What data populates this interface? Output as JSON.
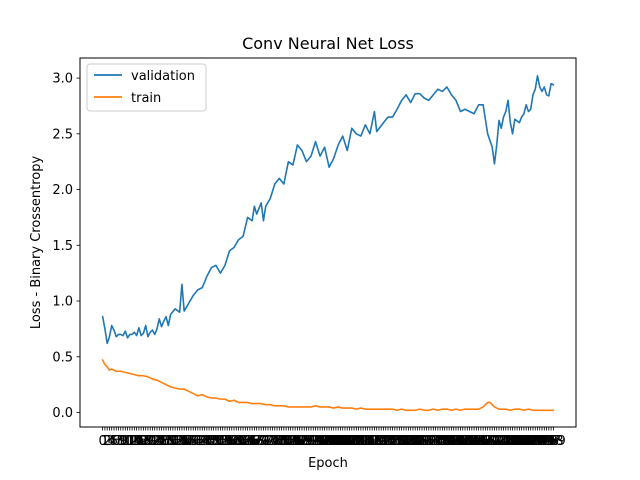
{
  "chart_data": {
    "type": "line",
    "title": "Conv Neural Net Loss",
    "xlabel": "Epoch",
    "ylabel": "Loss - Binary Crossentropy",
    "xlim": [
      -10,
      209
    ],
    "ylim": [
      -0.13,
      3.18
    ],
    "yticks": [
      0.0,
      0.5,
      1.0,
      1.5,
      2.0,
      2.5,
      3.0
    ],
    "ytick_labels": [
      "0.0",
      "0.5",
      "1.0",
      "1.5",
      "2.0",
      "2.5",
      "3.0"
    ],
    "grid": false,
    "legend_position": "upper left",
    "colors": {
      "validation": "#1f77b4",
      "train": "#ff7f0e"
    },
    "series": [
      {
        "name": "validation",
        "points": [
          [
            0,
            0.86
          ],
          [
            1,
            0.75
          ],
          [
            2,
            0.62
          ],
          [
            3,
            0.68
          ],
          [
            4,
            0.78
          ],
          [
            5,
            0.74
          ],
          [
            6,
            0.68
          ],
          [
            7,
            0.7
          ],
          [
            8,
            0.7
          ],
          [
            9,
            0.69
          ],
          [
            10,
            0.73
          ],
          [
            11,
            0.67
          ],
          [
            12,
            0.7
          ],
          [
            13,
            0.7
          ],
          [
            14,
            0.72
          ],
          [
            15,
            0.69
          ],
          [
            16,
            0.76
          ],
          [
            17,
            0.69
          ],
          [
            18,
            0.71
          ],
          [
            19,
            0.78
          ],
          [
            20,
            0.68
          ],
          [
            21,
            0.72
          ],
          [
            22,
            0.74
          ],
          [
            23,
            0.7
          ],
          [
            24,
            0.75
          ],
          [
            25,
            0.84
          ],
          [
            26,
            0.77
          ],
          [
            27,
            0.82
          ],
          [
            28,
            0.86
          ],
          [
            29,
            0.78
          ],
          [
            30,
            0.88
          ],
          [
            32,
            0.93
          ],
          [
            34,
            0.9
          ],
          [
            35,
            1.15
          ],
          [
            36,
            0.91
          ],
          [
            38,
            0.98
          ],
          [
            40,
            1.05
          ],
          [
            42,
            1.1
          ],
          [
            44,
            1.12
          ],
          [
            46,
            1.22
          ],
          [
            48,
            1.3
          ],
          [
            50,
            1.32
          ],
          [
            52,
            1.25
          ],
          [
            54,
            1.32
          ],
          [
            56,
            1.45
          ],
          [
            58,
            1.48
          ],
          [
            60,
            1.55
          ],
          [
            62,
            1.58
          ],
          [
            64,
            1.75
          ],
          [
            66,
            1.72
          ],
          [
            67,
            1.85
          ],
          [
            68,
            1.78
          ],
          [
            70,
            1.88
          ],
          [
            71,
            1.72
          ],
          [
            72,
            1.85
          ],
          [
            74,
            1.92
          ],
          [
            76,
            2.05
          ],
          [
            78,
            2.1
          ],
          [
            80,
            2.05
          ],
          [
            82,
            2.25
          ],
          [
            84,
            2.22
          ],
          [
            86,
            2.4
          ],
          [
            88,
            2.35
          ],
          [
            90,
            2.25
          ],
          [
            92,
            2.3
          ],
          [
            94,
            2.43
          ],
          [
            96,
            2.3
          ],
          [
            98,
            2.38
          ],
          [
            100,
            2.2
          ],
          [
            102,
            2.28
          ],
          [
            104,
            2.4
          ],
          [
            106,
            2.48
          ],
          [
            108,
            2.35
          ],
          [
            110,
            2.55
          ],
          [
            112,
            2.5
          ],
          [
            114,
            2.48
          ],
          [
            116,
            2.58
          ],
          [
            118,
            2.5
          ],
          [
            120,
            2.7
          ],
          [
            121,
            2.52
          ],
          [
            124,
            2.6
          ],
          [
            126,
            2.65
          ],
          [
            128,
            2.65
          ],
          [
            130,
            2.72
          ],
          [
            132,
            2.8
          ],
          [
            134,
            2.85
          ],
          [
            136,
            2.78
          ],
          [
            138,
            2.86
          ],
          [
            140,
            2.86
          ],
          [
            142,
            2.82
          ],
          [
            144,
            2.8
          ],
          [
            146,
            2.85
          ],
          [
            148,
            2.9
          ],
          [
            150,
            2.88
          ],
          [
            152,
            2.92
          ],
          [
            154,
            2.85
          ],
          [
            156,
            2.8
          ],
          [
            158,
            2.7
          ],
          [
            160,
            2.72
          ],
          [
            162,
            2.7
          ],
          [
            164,
            2.68
          ],
          [
            166,
            2.76
          ],
          [
            168,
            2.76
          ],
          [
            170,
            2.5
          ],
          [
            172,
            2.38
          ],
          [
            173,
            2.23
          ],
          [
            174,
            2.4
          ],
          [
            175,
            2.62
          ],
          [
            176,
            2.55
          ],
          [
            177,
            2.65
          ],
          [
            178,
            2.7
          ],
          [
            179,
            2.8
          ],
          [
            180,
            2.6
          ],
          [
            181,
            2.5
          ],
          [
            182,
            2.63
          ],
          [
            184,
            2.6
          ],
          [
            185,
            2.65
          ],
          [
            186,
            2.68
          ],
          [
            187,
            2.76
          ],
          [
            188,
            2.7
          ],
          [
            189,
            2.72
          ],
          [
            190,
            2.85
          ],
          [
            191,
            2.9
          ],
          [
            192,
            3.02
          ],
          [
            193,
            2.92
          ],
          [
            194,
            2.88
          ],
          [
            195,
            2.92
          ],
          [
            196,
            2.85
          ],
          [
            197,
            2.84
          ],
          [
            198,
            2.95
          ],
          [
            199,
            2.94
          ]
        ]
      },
      {
        "name": "train",
        "points": [
          [
            0,
            0.47
          ],
          [
            1,
            0.43
          ],
          [
            2,
            0.41
          ],
          [
            3,
            0.38
          ],
          [
            4,
            0.39
          ],
          [
            5,
            0.38
          ],
          [
            6,
            0.37
          ],
          [
            8,
            0.37
          ],
          [
            10,
            0.36
          ],
          [
            12,
            0.35
          ],
          [
            14,
            0.34
          ],
          [
            16,
            0.33
          ],
          [
            18,
            0.33
          ],
          [
            20,
            0.32
          ],
          [
            22,
            0.3
          ],
          [
            24,
            0.29
          ],
          [
            26,
            0.27
          ],
          [
            28,
            0.25
          ],
          [
            30,
            0.23
          ],
          [
            32,
            0.22
          ],
          [
            34,
            0.21
          ],
          [
            36,
            0.21
          ],
          [
            38,
            0.19
          ],
          [
            40,
            0.17
          ],
          [
            42,
            0.15
          ],
          [
            44,
            0.16
          ],
          [
            46,
            0.14
          ],
          [
            48,
            0.13
          ],
          [
            50,
            0.13
          ],
          [
            52,
            0.12
          ],
          [
            54,
            0.12
          ],
          [
            56,
            0.1
          ],
          [
            58,
            0.11
          ],
          [
            60,
            0.09
          ],
          [
            62,
            0.09
          ],
          [
            64,
            0.09
          ],
          [
            66,
            0.08
          ],
          [
            68,
            0.08
          ],
          [
            70,
            0.08
          ],
          [
            72,
            0.07
          ],
          [
            74,
            0.07
          ],
          [
            76,
            0.06
          ],
          [
            78,
            0.06
          ],
          [
            80,
            0.06
          ],
          [
            82,
            0.05
          ],
          [
            84,
            0.05
          ],
          [
            86,
            0.05
          ],
          [
            88,
            0.05
          ],
          [
            90,
            0.05
          ],
          [
            92,
            0.05
          ],
          [
            94,
            0.06
          ],
          [
            96,
            0.05
          ],
          [
            98,
            0.05
          ],
          [
            100,
            0.05
          ],
          [
            102,
            0.04
          ],
          [
            104,
            0.05
          ],
          [
            106,
            0.04
          ],
          [
            108,
            0.04
          ],
          [
            110,
            0.04
          ],
          [
            112,
            0.03
          ],
          [
            114,
            0.04
          ],
          [
            116,
            0.03
          ],
          [
            118,
            0.03
          ],
          [
            120,
            0.03
          ],
          [
            122,
            0.03
          ],
          [
            124,
            0.03
          ],
          [
            126,
            0.03
          ],
          [
            128,
            0.03
          ],
          [
            130,
            0.02
          ],
          [
            132,
            0.03
          ],
          [
            134,
            0.02
          ],
          [
            136,
            0.02
          ],
          [
            138,
            0.02
          ],
          [
            140,
            0.03
          ],
          [
            142,
            0.02
          ],
          [
            144,
            0.02
          ],
          [
            146,
            0.03
          ],
          [
            148,
            0.02
          ],
          [
            150,
            0.03
          ],
          [
            152,
            0.03
          ],
          [
            154,
            0.02
          ],
          [
            156,
            0.03
          ],
          [
            158,
            0.02
          ],
          [
            160,
            0.03
          ],
          [
            162,
            0.03
          ],
          [
            164,
            0.03
          ],
          [
            166,
            0.03
          ],
          [
            168,
            0.05
          ],
          [
            170,
            0.09
          ],
          [
            171,
            0.09
          ],
          [
            172,
            0.07
          ],
          [
            173,
            0.05
          ],
          [
            174,
            0.04
          ],
          [
            175,
            0.03
          ],
          [
            176,
            0.03
          ],
          [
            178,
            0.03
          ],
          [
            180,
            0.02
          ],
          [
            182,
            0.03
          ],
          [
            184,
            0.03
          ],
          [
            186,
            0.02
          ],
          [
            188,
            0.03
          ],
          [
            190,
            0.02
          ],
          [
            192,
            0.02
          ],
          [
            194,
            0.02
          ],
          [
            196,
            0.02
          ],
          [
            198,
            0.02
          ],
          [
            199,
            0.02
          ]
        ]
      }
    ]
  }
}
